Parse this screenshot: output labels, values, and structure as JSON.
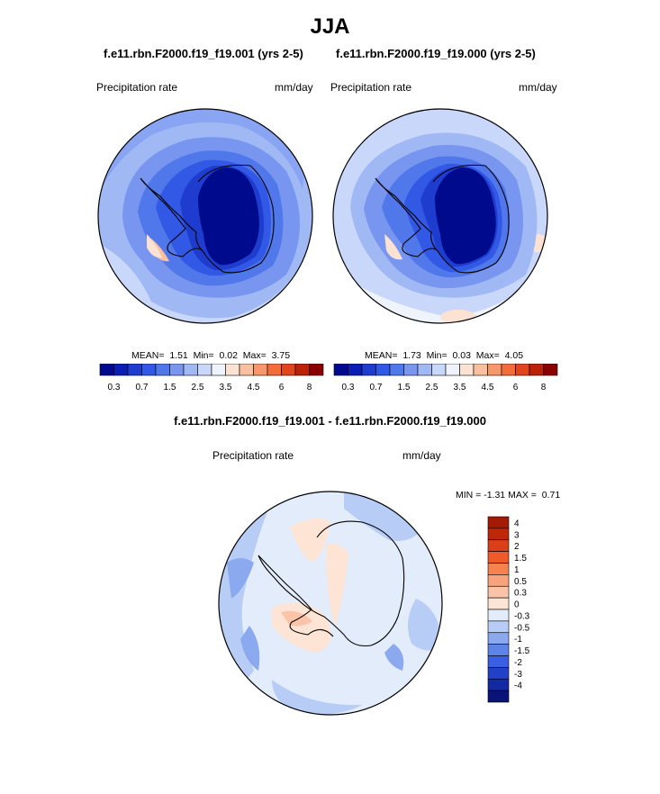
{
  "figure": {
    "title": "JJA",
    "diff_title": "f.e11.rbn.F2000.f19_f19.001 - f.e11.rbn.F2000.f19_f19.000"
  },
  "chart_data": [
    {
      "type": "heatmap",
      "subtype": "polar-stereographic contour map (Antarctic)",
      "title": "f.e11.rbn.F2000.f19_f19.001 (yrs 2-5)",
      "variable": "Precipitation rate",
      "units": "mm/day",
      "season": "JJA",
      "stats": {
        "mean": 1.51,
        "min": 0.02,
        "max": 3.75
      },
      "stats_text": {
        "mean_label": "MEAN=",
        "mean": "1.51",
        "min_label": "Min=",
        "min": "0.02",
        "max_label": "Max=",
        "max": "3.75"
      },
      "colorbar": {
        "levels": [
          0.3,
          0.5,
          0.7,
          1,
          1.5,
          2,
          2.5,
          3,
          3.5,
          4,
          4.5,
          5,
          6,
          7,
          8
        ],
        "tick_labels": [
          "0.3",
          "0.7",
          "1.5",
          "2.5",
          "3.5",
          "4.5",
          "6",
          "8"
        ],
        "colors": [
          "#000a8c",
          "#0a1eb4",
          "#1e3ccd",
          "#3258e6",
          "#5078eb",
          "#7896f0",
          "#a0b9f5",
          "#c8d7fa",
          "#eef3fc",
          "#fce2d2",
          "#f9c0a0",
          "#f7976c",
          "#f26d3a",
          "#e0451c",
          "#bb2208",
          "#8a0000"
        ]
      }
    },
    {
      "type": "heatmap",
      "subtype": "polar-stereographic contour map (Antarctic)",
      "title": "f.e11.rbn.F2000.f19_f19.000 (yrs 2-5)",
      "variable": "Precipitation rate",
      "units": "mm/day",
      "season": "JJA",
      "stats": {
        "mean": 1.73,
        "min": 0.03,
        "max": 4.05
      },
      "stats_text": {
        "mean_label": "MEAN=",
        "mean": "1.73",
        "min_label": "Min=",
        "min": "0.03",
        "max_label": "Max=",
        "max": "4.05"
      },
      "colorbar": {
        "levels": [
          0.3,
          0.5,
          0.7,
          1,
          1.5,
          2,
          2.5,
          3,
          3.5,
          4,
          4.5,
          5,
          6,
          7,
          8
        ],
        "tick_labels": [
          "0.3",
          "0.7",
          "1.5",
          "2.5",
          "3.5",
          "4.5",
          "6",
          "8"
        ],
        "colors": [
          "#000a8c",
          "#0a1eb4",
          "#1e3ccd",
          "#3258e6",
          "#5078eb",
          "#7896f0",
          "#a0b9f5",
          "#c8d7fa",
          "#eef3fc",
          "#fce2d2",
          "#f9c0a0",
          "#f7976c",
          "#f26d3a",
          "#e0451c",
          "#bb2208",
          "#8a0000"
        ]
      }
    },
    {
      "type": "heatmap",
      "subtype": "polar-stereographic contour map (difference)",
      "title": "f.e11.rbn.F2000.f19_f19.001 - f.e11.rbn.F2000.f19_f19.000",
      "variable": "Precipitation rate",
      "units": "mm/day",
      "stats": {
        "min": -1.31,
        "max": 0.71
      },
      "stats_text": {
        "min_label": "MIN =",
        "min": "-1.31",
        "max_label": "MAX =",
        "max": "0.71"
      },
      "colorbar": {
        "orientation": "vertical",
        "tick_labels": [
          "4",
          "3",
          "2",
          "1.5",
          "1",
          "0.5",
          "0.3",
          "0",
          "-0.3",
          "-0.5",
          "-1",
          "-1.5",
          "-2",
          "-3",
          "-4"
        ],
        "colors": [
          "#a51a05",
          "#c2260a",
          "#db3f17",
          "#f05a28",
          "#f7824d",
          "#f9a37e",
          "#fbc3a8",
          "#fde4d4",
          "#e2ecfa",
          "#b8cdf5",
          "#8ba9ef",
          "#5e84e8",
          "#3a5fe0",
          "#2341c8",
          "#1428a4",
          "#0a1478"
        ]
      }
    }
  ]
}
